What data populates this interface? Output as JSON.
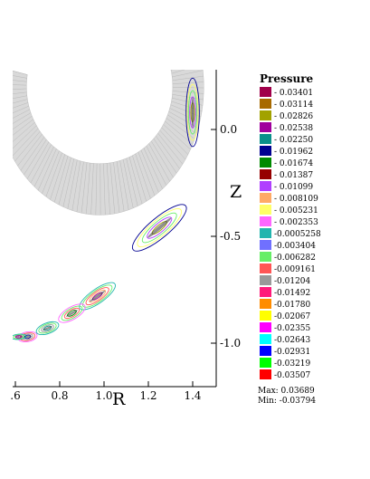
{
  "chart_data": {
    "type": "contour",
    "xlabel": "R",
    "ylabel": "Z",
    "xlim": [
      0.6,
      1.52
    ],
    "ylim": [
      -1.2,
      0.3
    ],
    "x_ticks": [
      {
        "value": 0.6,
        "label": ".6"
      },
      {
        "value": 0.8,
        "label": "0.8"
      },
      {
        "value": 1.0,
        "label": "1.0"
      },
      {
        "value": 1.2,
        "label": "1.2"
      },
      {
        "value": 1.4,
        "label": "1.4"
      }
    ],
    "y_ticks": [
      {
        "value": 0.0,
        "label": "0.0"
      },
      {
        "value": -0.5,
        "label": "-0.5"
      },
      {
        "value": -1.0,
        "label": "-1.0"
      }
    ],
    "legend": {
      "title": "Pressure",
      "position": "right",
      "levels": [
        {
          "label": "0.03401",
          "color": "#a0004a"
        },
        {
          "label": "0.03114",
          "color": "#a86a00"
        },
        {
          "label": "0.02826",
          "color": "#a2a200"
        },
        {
          "label": "0.02538",
          "color": "#a0009c"
        },
        {
          "label": "0.02250",
          "color": "#0a8f8a"
        },
        {
          "label": "0.01962",
          "color": "#000090"
        },
        {
          "label": "0.01674",
          "color": "#008a00"
        },
        {
          "label": "0.01387",
          "color": "#960000"
        },
        {
          "label": "0.01099",
          "color": "#b040ff"
        },
        {
          "label": "0.008109",
          "color": "#ffaa66"
        },
        {
          "label": "0.005231",
          "color": "#ffff66"
        },
        {
          "label": "0.002353",
          "color": "#ff66ff"
        },
        {
          "label": "-0.0005258",
          "color": "#22b5ae"
        },
        {
          "label": "-0.003404",
          "color": "#7070ff"
        },
        {
          "label": "-0.006282",
          "color": "#66ee66"
        },
        {
          "label": "-0.009161",
          "color": "#ff5555"
        },
        {
          "label": "-0.01204",
          "color": "#999999"
        },
        {
          "label": "-0.01492",
          "color": "#ff1a7a"
        },
        {
          "label": "-0.01780",
          "color": "#ff8c00"
        },
        {
          "label": "-0.02067",
          "color": "#ffff00"
        },
        {
          "label": "-0.02355",
          "color": "#ff00ff"
        },
        {
          "label": "-0.02643",
          "color": "#00ffff"
        },
        {
          "label": "-0.02931",
          "color": "#0000ff"
        },
        {
          "label": "-0.03219",
          "color": "#00ff00"
        },
        {
          "label": "-0.03507",
          "color": "#ff0000"
        }
      ]
    },
    "max_text": "Max:  0.03689",
    "min_text": "Min: -0.03794",
    "islands": [
      {
        "R": 1.4,
        "Z": 0.08,
        "ri": 0.03,
        "rz": 0.16,
        "ang": 0,
        "levels": [
          5,
          10,
          14,
          8,
          2
        ]
      },
      {
        "R": 1.25,
        "Z": -0.46,
        "ri": 0.045,
        "rz": 0.16,
        "ang": 50,
        "levels": [
          5,
          10,
          14,
          8,
          2
        ]
      },
      {
        "R": 0.97,
        "Z": -0.78,
        "ri": 0.032,
        "rz": 0.1,
        "ang": 55,
        "levels": [
          12,
          14,
          15,
          9,
          3
        ]
      },
      {
        "R": 0.855,
        "Z": -0.86,
        "ri": 0.028,
        "rz": 0.07,
        "ang": 60,
        "levels": [
          11,
          14,
          15,
          6
        ]
      },
      {
        "R": 0.745,
        "Z": -0.93,
        "ri": 0.024,
        "rz": 0.055,
        "ang": 70,
        "levels": [
          12,
          14,
          16,
          4
        ]
      },
      {
        "R": 0.655,
        "Z": -0.97,
        "ri": 0.022,
        "rz": 0.045,
        "ang": 80,
        "levels": [
          11,
          15,
          16,
          5
        ]
      },
      {
        "R": 0.615,
        "Z": -0.97,
        "ri": 0.012,
        "rz": 0.035,
        "ang": 85,
        "levels": [
          12,
          14,
          3
        ]
      }
    ]
  }
}
